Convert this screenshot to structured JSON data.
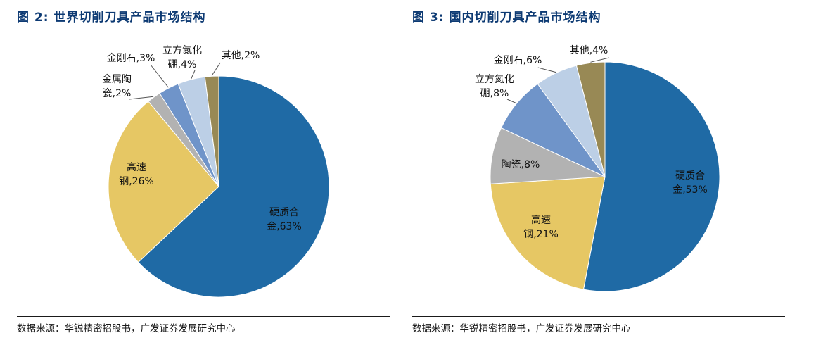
{
  "chart_data": [
    {
      "type": "pie",
      "title": "图 2: 世界切削刀具产品市场结构",
      "source": "数据来源：华锐精密招股书，广发证券发展研究中心",
      "slices": [
        {
          "name": "硬质合金",
          "value": 63,
          "color": "#1f6aa5",
          "label": [
            "硬质合",
            "金,63%"
          ]
        },
        {
          "name": "高速钢",
          "value": 26,
          "color": "#e6c764",
          "label": [
            "高速",
            "钢,26%"
          ]
        },
        {
          "name": "金属陶瓷",
          "value": 2,
          "color": "#b2b2b2",
          "label": [
            "金属陶",
            "瓷,2%"
          ]
        },
        {
          "name": "金刚石",
          "value": 3,
          "color": "#6f94c9",
          "label": [
            "金刚石,3%"
          ]
        },
        {
          "name": "立方氮化硼",
          "value": 4,
          "color": "#bccfe6",
          "label": [
            "立方氮化",
            "硼,4%"
          ]
        },
        {
          "name": "其他",
          "value": 2,
          "color": "#988955",
          "label": [
            "其他,2%"
          ]
        }
      ]
    },
    {
      "type": "pie",
      "title": "图 3: 国内切削刀具产品市场结构",
      "source": "数据来源：华锐精密招股书，广发证券发展研究中心",
      "slices": [
        {
          "name": "硬质合金",
          "value": 53,
          "color": "#1f6aa5",
          "label": [
            "硬质合",
            "金,53%"
          ]
        },
        {
          "name": "高速钢",
          "value": 21,
          "color": "#e6c764",
          "label": [
            "高速",
            "钢,21%"
          ]
        },
        {
          "name": "陶瓷",
          "value": 8,
          "color": "#b2b2b2",
          "label": [
            "陶瓷,8%"
          ]
        },
        {
          "name": "立方氮化硼",
          "value": 8,
          "color": "#6f94c9",
          "label": [
            "立方氮化",
            "硼,8%"
          ]
        },
        {
          "name": "金刚石",
          "value": 6,
          "color": "#bccfe6",
          "label": [
            "金刚石,6%"
          ]
        },
        {
          "name": "其他",
          "value": 4,
          "color": "#988955",
          "label": [
            "其他,4%"
          ]
        }
      ]
    }
  ]
}
